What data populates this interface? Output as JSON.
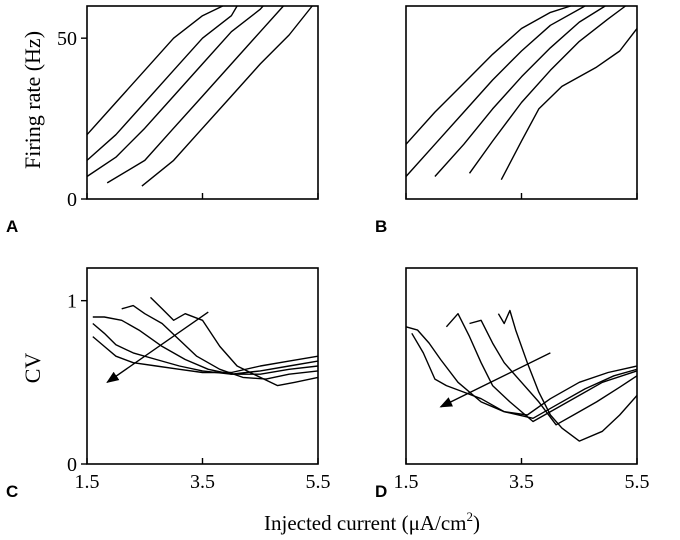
{
  "axis_labels": {
    "top_ylabel": "Firing rate (Hz)",
    "bottom_ylabel": "CV",
    "xlabel_main": "Injected current (μA/cm",
    "xlabel_sup": "2",
    "xlabel_end": ")"
  },
  "chart_data": [
    {
      "panel": "A",
      "type": "line",
      "xlim": [
        1.5,
        5.5
      ],
      "ylim": [
        0,
        60
      ],
      "xticks": [
        1.5,
        3.5,
        5.5
      ],
      "yticks": [
        0,
        50
      ],
      "ytick_labels": [
        "0",
        "50"
      ],
      "series": [
        {
          "x": [
            1.5,
            2.0,
            2.5,
            3.0,
            3.5,
            3.85
          ],
          "y": [
            20,
            30,
            40,
            50,
            57,
            60
          ]
        },
        {
          "x": [
            1.5,
            2.0,
            2.5,
            3.0,
            3.5,
            4.0,
            4.1
          ],
          "y": [
            12,
            20,
            30,
            40,
            50,
            57,
            60
          ]
        },
        {
          "x": [
            1.5,
            2.0,
            2.5,
            3.0,
            3.5,
            4.0,
            4.5,
            4.55
          ],
          "y": [
            7,
            13,
            22,
            32,
            42,
            52,
            59,
            60
          ]
        },
        {
          "x": [
            1.85,
            2.5,
            3.0,
            3.5,
            4.0,
            4.5,
            4.9
          ],
          "y": [
            5,
            12,
            22,
            32,
            42,
            52,
            60
          ]
        },
        {
          "x": [
            2.45,
            3.0,
            3.5,
            4.0,
            4.5,
            5.0,
            5.4
          ],
          "y": [
            4,
            12,
            22,
            32,
            42,
            51,
            60
          ]
        }
      ]
    },
    {
      "panel": "B",
      "type": "line",
      "xlim": [
        1.5,
        5.5
      ],
      "ylim": [
        0,
        60
      ],
      "xticks": [
        1.5,
        3.5,
        5.5
      ],
      "series": [
        {
          "x": [
            1.5,
            2.0,
            2.5,
            3.0,
            3.5,
            4.0,
            4.35
          ],
          "y": [
            17,
            27,
            36,
            45,
            53,
            58,
            60
          ]
        },
        {
          "x": [
            1.5,
            2.0,
            2.5,
            3.0,
            3.5,
            4.0,
            4.6
          ],
          "y": [
            7,
            17,
            27,
            37,
            46,
            54,
            60
          ]
        },
        {
          "x": [
            2.0,
            2.5,
            3.0,
            3.5,
            4.0,
            4.5,
            4.95
          ],
          "y": [
            7,
            17,
            28,
            38,
            47,
            55,
            60
          ]
        },
        {
          "x": [
            2.6,
            3.0,
            3.5,
            4.0,
            4.5,
            5.0,
            5.3
          ],
          "y": [
            8,
            18,
            30,
            40,
            49,
            56,
            60
          ]
        },
        {
          "x": [
            3.15,
            3.5,
            3.8,
            4.2,
            4.8,
            5.2,
            5.5
          ],
          "y": [
            6,
            18,
            28,
            35,
            41,
            46,
            53
          ]
        }
      ]
    },
    {
      "panel": "C",
      "type": "line",
      "xlim": [
        1.5,
        5.5
      ],
      "ylim": [
        0,
        1.2
      ],
      "xticks": [
        1.5,
        3.5,
        5.5
      ],
      "xtick_labels": [
        "1.5",
        "3.5",
        "5.5"
      ],
      "yticks": [
        0,
        1
      ],
      "ytick_labels": [
        "0",
        "1"
      ],
      "series": [
        {
          "x": [
            1.6,
            1.8,
            2.0,
            2.3,
            2.7,
            3.1,
            3.5,
            4.0,
            4.5,
            5.0,
            5.5
          ],
          "y": [
            0.78,
            0.72,
            0.66,
            0.62,
            0.6,
            0.58,
            0.56,
            0.56,
            0.6,
            0.63,
            0.66
          ]
        },
        {
          "x": [
            1.6,
            1.8,
            2.0,
            2.3,
            2.7,
            3.1,
            3.5,
            4.0,
            4.5,
            5.0,
            5.5
          ],
          "y": [
            0.86,
            0.8,
            0.73,
            0.68,
            0.64,
            0.6,
            0.57,
            0.55,
            0.57,
            0.6,
            0.63
          ]
        },
        {
          "x": [
            1.6,
            1.8,
            2.1,
            2.4,
            2.8,
            3.2,
            3.6,
            4.0,
            4.5,
            5.0,
            5.5
          ],
          "y": [
            0.9,
            0.9,
            0.88,
            0.82,
            0.72,
            0.64,
            0.58,
            0.55,
            0.55,
            0.58,
            0.6
          ]
        },
        {
          "x": [
            2.1,
            2.3,
            2.5,
            2.8,
            3.1,
            3.4,
            3.8,
            4.2,
            4.6,
            5.0,
            5.5
          ],
          "y": [
            0.95,
            0.97,
            0.92,
            0.86,
            0.76,
            0.66,
            0.58,
            0.53,
            0.52,
            0.55,
            0.57
          ]
        },
        {
          "x": [
            2.6,
            2.8,
            3.0,
            3.2,
            3.5,
            3.8,
            4.1,
            4.5,
            4.8,
            5.1,
            5.5
          ],
          "y": [
            1.02,
            0.95,
            0.88,
            0.92,
            0.88,
            0.72,
            0.6,
            0.53,
            0.48,
            0.5,
            0.53
          ]
        }
      ],
      "arrow": {
        "from": [
          3.6,
          0.93
        ],
        "to": [
          1.85,
          0.5
        ]
      }
    },
    {
      "panel": "D",
      "type": "line",
      "xlim": [
        1.5,
        5.5
      ],
      "ylim": [
        0,
        1.2
      ],
      "xticks": [
        1.5,
        3.5,
        5.5
      ],
      "xtick_labels": [
        "1.5",
        "3.5",
        "5.5"
      ],
      "series": [
        {
          "x": [
            1.5,
            1.7,
            1.9,
            2.1,
            2.4,
            2.8,
            3.2,
            3.6,
            4.0,
            4.5,
            5.0,
            5.5
          ],
          "y": [
            0.84,
            0.82,
            0.74,
            0.64,
            0.5,
            0.38,
            0.32,
            0.3,
            0.4,
            0.5,
            0.56,
            0.6
          ]
        },
        {
          "x": [
            1.6,
            1.8,
            2.0,
            2.2,
            2.5,
            2.8,
            3.2,
            3.7,
            4.1,
            4.6,
            5.1,
            5.5
          ],
          "y": [
            0.8,
            0.68,
            0.52,
            0.48,
            0.44,
            0.4,
            0.32,
            0.28,
            0.36,
            0.46,
            0.54,
            0.58
          ]
        },
        {
          "x": [
            2.2,
            2.4,
            2.6,
            2.8,
            3.0,
            3.3,
            3.7,
            4.1,
            4.5,
            4.9,
            5.5
          ],
          "y": [
            0.84,
            0.92,
            0.78,
            0.62,
            0.48,
            0.38,
            0.26,
            0.34,
            0.42,
            0.5,
            0.57
          ]
        },
        {
          "x": [
            2.6,
            2.8,
            3.0,
            3.2,
            3.5,
            3.8,
            4.1,
            4.4,
            4.8,
            5.2,
            5.5
          ],
          "y": [
            0.86,
            0.88,
            0.74,
            0.62,
            0.5,
            0.38,
            0.24,
            0.3,
            0.38,
            0.47,
            0.54
          ]
        },
        {
          "x": [
            3.1,
            3.2,
            3.3,
            3.4,
            3.6,
            3.8,
            4.0,
            4.2,
            4.5,
            4.9,
            5.2,
            5.5
          ],
          "y": [
            0.92,
            0.86,
            0.94,
            0.82,
            0.62,
            0.44,
            0.3,
            0.22,
            0.14,
            0.2,
            0.3,
            0.42
          ]
        }
      ],
      "arrow": {
        "from": [
          4.0,
          0.68
        ],
        "to": [
          2.1,
          0.35
        ]
      }
    }
  ],
  "panel_labels": [
    "A",
    "B",
    "C",
    "D"
  ]
}
